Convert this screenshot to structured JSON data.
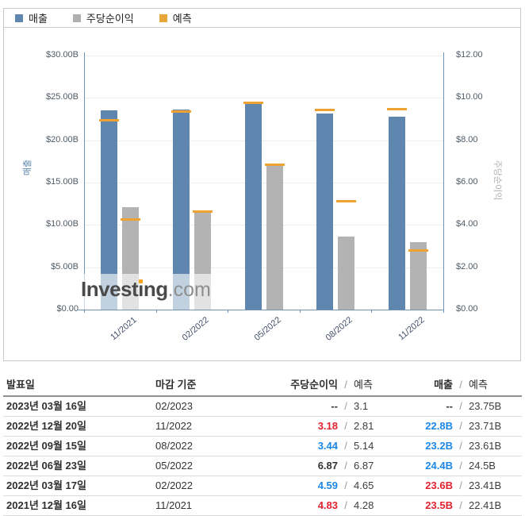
{
  "legend": {
    "items": [
      {
        "label": "매출",
        "color": "#5e86af"
      },
      {
        "label": "주당순이익",
        "color": "#b0b0b0"
      },
      {
        "label": "예측",
        "color": "#e9a63a"
      }
    ]
  },
  "watermark": {
    "p1": "Invest",
    "p2": "ı",
    "p3": "ng",
    "suffix": ".com"
  },
  "chart_data": {
    "type": "bar",
    "categories": [
      "11/2021",
      "02/2022",
      "05/2022",
      "08/2022",
      "11/2022"
    ],
    "series": [
      {
        "name": "매출",
        "axis": "left",
        "color": "#5e86af",
        "values": [
          23.5,
          23.6,
          24.4,
          23.2,
          22.8
        ]
      },
      {
        "name": "주당순이익",
        "axis": "right",
        "color": "#b3b3b3",
        "values": [
          4.83,
          4.59,
          6.87,
          3.44,
          3.18
        ]
      },
      {
        "name": "예측 (매출)",
        "type": "tick",
        "axis": "left",
        "color": "#efa232",
        "values": [
          22.41,
          23.41,
          24.5,
          23.61,
          23.71
        ]
      },
      {
        "name": "예측 (주당순이익)",
        "type": "tick",
        "axis": "right",
        "color": "#efa232",
        "values": [
          4.28,
          4.65,
          6.87,
          5.14,
          2.81
        ]
      }
    ],
    "left_axis": {
      "title": "매출",
      "max": 30,
      "min": 0,
      "labels": [
        "$30.00B",
        "$25.00B",
        "$20.00B",
        "$15.00B",
        "$10.00B",
        "$5.00B",
        "$0.00"
      ]
    },
    "right_axis": {
      "title": "주당순이익",
      "max": 12,
      "min": 0,
      "labels": [
        "$12.00",
        "$10.00",
        "$8.00",
        "$6.00",
        "$4.00",
        "$2.00",
        "$0.00"
      ]
    },
    "grid": true,
    "legend_position": "top"
  },
  "colors": {
    "beat": "#e1232e",
    "miss": "#1d87e4",
    "bar_revenue": "#5e86af",
    "bar_eps": "#b3b3b3",
    "forecast": "#efa232"
  },
  "table": {
    "headers": {
      "date": "발표일",
      "period": "마감 기준",
      "eps": "주당순이익",
      "revenue": "매출",
      "forecast": "예측",
      "slash": "/"
    },
    "rows": [
      {
        "date": "2023년 03월 16일",
        "period": "02/2023",
        "eps": "--",
        "eps_color": "neutral",
        "eps_fc": "3.1",
        "rev": "--",
        "rev_color": "neutral",
        "rev_fc": "23.75B"
      },
      {
        "date": "2022년 12월 20일",
        "period": "11/2022",
        "eps": "3.18",
        "eps_color": "red",
        "eps_fc": "2.81",
        "rev": "22.8B",
        "rev_color": "blue",
        "rev_fc": "23.71B"
      },
      {
        "date": "2022년 09월 15일",
        "period": "08/2022",
        "eps": "3.44",
        "eps_color": "blue",
        "eps_fc": "5.14",
        "rev": "23.2B",
        "rev_color": "blue",
        "rev_fc": "23.61B"
      },
      {
        "date": "2022년 06월 23일",
        "period": "05/2022",
        "eps": "6.87",
        "eps_color": "neutral",
        "eps_fc": "6.87",
        "rev": "24.4B",
        "rev_color": "blue",
        "rev_fc": "24.5B"
      },
      {
        "date": "2022년 03월 17일",
        "period": "02/2022",
        "eps": "4.59",
        "eps_color": "blue",
        "eps_fc": "4.65",
        "rev": "23.6B",
        "rev_color": "red",
        "rev_fc": "23.41B"
      },
      {
        "date": "2021년 12월 16일",
        "period": "11/2021",
        "eps": "4.83",
        "eps_color": "red",
        "eps_fc": "4.28",
        "rev": "23.5B",
        "rev_color": "red",
        "rev_fc": "22.41B"
      }
    ]
  }
}
